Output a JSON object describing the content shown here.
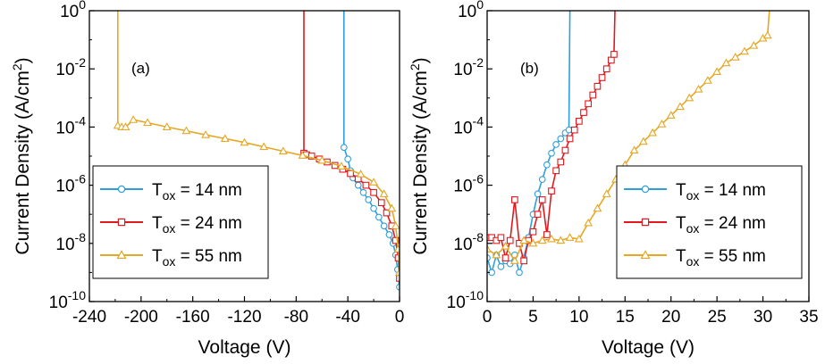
{
  "chart_data": [
    {
      "type": "line",
      "panel_label": "(a)",
      "xlabel": "Voltage (V)",
      "ylabel_prefix": "Current Density (A/cm",
      "ylabel_sup": "2",
      "ylabel_suffix": ")",
      "xlim": [
        -240,
        0
      ],
      "ylim_log10": [
        -10,
        0
      ],
      "xticks": [
        -240,
        -200,
        -160,
        -120,
        -80,
        -40,
        0
      ],
      "xtick_labels": [
        "-240",
        "-200",
        "-160",
        "-120",
        "-80",
        "-40",
        "0"
      ],
      "yticks_exp": [
        -10,
        -8,
        -6,
        -4,
        -2,
        0
      ],
      "ytick_labels": [
        {
          "base": "10",
          "exp": "-10"
        },
        {
          "base": "10",
          "exp": "-8"
        },
        {
          "base": "10",
          "exp": "-6"
        },
        {
          "base": "10",
          "exp": "-4"
        },
        {
          "base": "10",
          "exp": "-2"
        },
        {
          "base": "10",
          "exp": "0"
        }
      ],
      "legend_position": "bottom-left",
      "series": [
        {
          "name": "Tox = 14 nm",
          "label_base": "T",
          "label_sub": "ox",
          "label_rest": " = 14 nm",
          "color": "#2f9fdc",
          "marker": "circle",
          "x": [
            -43,
            -43,
            -40,
            -38,
            -36,
            -32,
            -28,
            -24,
            -20,
            -16,
            -12,
            -8,
            -5,
            -3,
            -1.5,
            0
          ],
          "y_log10": [
            0,
            -4.7,
            -5.1,
            -5.5,
            -5.75,
            -6.0,
            -6.25,
            -6.5,
            -6.8,
            -7.1,
            -7.4,
            -7.7,
            -8.0,
            -8.4,
            -8.9,
            -9.5
          ]
        },
        {
          "name": "Tox = 24 nm",
          "label_base": "T",
          "label_sub": "ox",
          "label_rest": " = 24 nm",
          "color": "#e0191e",
          "marker": "square",
          "x": [
            -74,
            -74,
            -72,
            -68,
            -62,
            -56,
            -50,
            -44,
            -38,
            -32,
            -26,
            -20,
            -14,
            -10,
            -6,
            -3,
            -1,
            0
          ],
          "y_log10": [
            0,
            -4.9,
            -4.95,
            -5.0,
            -5.1,
            -5.2,
            -5.32,
            -5.45,
            -5.6,
            -5.78,
            -6.0,
            -6.25,
            -6.6,
            -6.95,
            -7.4,
            -7.9,
            -8.5,
            -9.2
          ]
        },
        {
          "name": "Tox = 55 nm",
          "label_base": "T",
          "label_sub": "ox",
          "label_rest": " = 55 nm",
          "color": "#e5a724",
          "marker": "triangle",
          "x": [
            -218,
            -218,
            -215,
            -212,
            -206,
            -195,
            -180,
            -165,
            -150,
            -135,
            -120,
            -105,
            -90,
            -75,
            -60,
            -45,
            -30,
            -20,
            -12,
            -6,
            -3,
            -1,
            0
          ],
          "y_log10": [
            0,
            -3.95,
            -4.0,
            -4.0,
            -3.75,
            -3.85,
            -4.0,
            -4.13,
            -4.27,
            -4.4,
            -4.53,
            -4.68,
            -4.83,
            -4.98,
            -5.15,
            -5.35,
            -5.62,
            -5.9,
            -6.3,
            -6.8,
            -7.4,
            -8.2,
            -9.0
          ]
        }
      ]
    },
    {
      "type": "line",
      "panel_label": "(b)",
      "xlabel": "Voltage (V)",
      "ylabel_prefix": "Current Density (A/cm",
      "ylabel_sup": "2",
      "ylabel_suffix": ")",
      "xlim": [
        0,
        35
      ],
      "ylim_log10": [
        -10,
        0
      ],
      "xticks": [
        0,
        5,
        10,
        15,
        20,
        25,
        30,
        35
      ],
      "xtick_labels": [
        "0",
        "5",
        "10",
        "15",
        "20",
        "25",
        "30",
        "35"
      ],
      "yticks_exp": [
        -10,
        -8,
        -6,
        -4,
        -2,
        0
      ],
      "ytick_labels": [
        {
          "base": "10",
          "exp": "-10"
        },
        {
          "base": "10",
          "exp": "-8"
        },
        {
          "base": "10",
          "exp": "-6"
        },
        {
          "base": "10",
          "exp": "-4"
        },
        {
          "base": "10",
          "exp": "-2"
        },
        {
          "base": "10",
          "exp": "0"
        }
      ],
      "legend_position": "bottom-right",
      "series": [
        {
          "name": "Tox = 14 nm",
          "label_base": "T",
          "label_sub": "ox",
          "label_rest": " = 14 nm",
          "color": "#2f9fdc",
          "marker": "circle",
          "x": [
            0,
            0.5,
            1,
            1.5,
            2,
            2.5,
            3,
            3.5,
            4,
            4.5,
            5,
            5.5,
            6,
            6.5,
            7,
            7.5,
            8,
            8.5,
            8.9,
            9.0
          ],
          "y_log10": [
            -8.5,
            -9.0,
            -8.4,
            -8.8,
            -8.6,
            -8.7,
            -8.4,
            -9.0,
            -8.5,
            -7.8,
            -7.0,
            -6.3,
            -5.8,
            -5.3,
            -4.9,
            -4.6,
            -4.4,
            -4.2,
            -4.1,
            0
          ]
        },
        {
          "name": "Tox = 24 nm",
          "label_base": "T",
          "label_sub": "ox",
          "label_rest": " = 24 nm",
          "color": "#e0191e",
          "marker": "square",
          "x": [
            0,
            0.5,
            1,
            1.5,
            2,
            2.5,
            3,
            3.5,
            4,
            4.5,
            5,
            5.5,
            6,
            6.5,
            7,
            7.5,
            8,
            8.5,
            9,
            9.5,
            10,
            10.5,
            11,
            11.5,
            12,
            12.5,
            13,
            13.5,
            13.8,
            13.9
          ],
          "y_log10": [
            -7.8,
            -7.8,
            -7.9,
            -7.8,
            -8.5,
            -7.9,
            -6.5,
            -8.0,
            -8.6,
            -7.9,
            -7.6,
            -7.0,
            -6.5,
            -7.7,
            -6.2,
            -5.5,
            -5.2,
            -4.8,
            -4.4,
            -4.1,
            -3.8,
            -3.5,
            -3.2,
            -2.9,
            -2.6,
            -2.3,
            -2.0,
            -1.7,
            -1.5,
            0
          ]
        },
        {
          "name": "Tox = 55 nm",
          "label_base": "T",
          "label_sub": "ox",
          "label_rest": " = 55 nm",
          "color": "#e5a724",
          "marker": "triangle",
          "x": [
            0,
            1,
            2,
            3,
            4,
            5,
            6,
            7,
            8,
            9,
            10,
            11,
            12,
            13,
            14,
            15,
            16,
            17,
            18,
            19,
            20,
            21,
            22,
            23,
            24,
            25,
            26,
            27,
            28,
            29,
            30,
            30.5,
            30.7
          ],
          "y_log10": [
            -8.2,
            -8.4,
            -8.1,
            -8.6,
            -7.9,
            -8.0,
            -7.9,
            -7.85,
            -7.9,
            -7.8,
            -7.85,
            -7.3,
            -6.8,
            -6.3,
            -5.8,
            -5.3,
            -4.8,
            -4.5,
            -4.2,
            -3.9,
            -3.6,
            -3.3,
            -3.0,
            -2.7,
            -2.4,
            -2.1,
            -1.8,
            -1.6,
            -1.4,
            -1.2,
            -0.95,
            -0.85,
            0
          ]
        }
      ]
    }
  ]
}
